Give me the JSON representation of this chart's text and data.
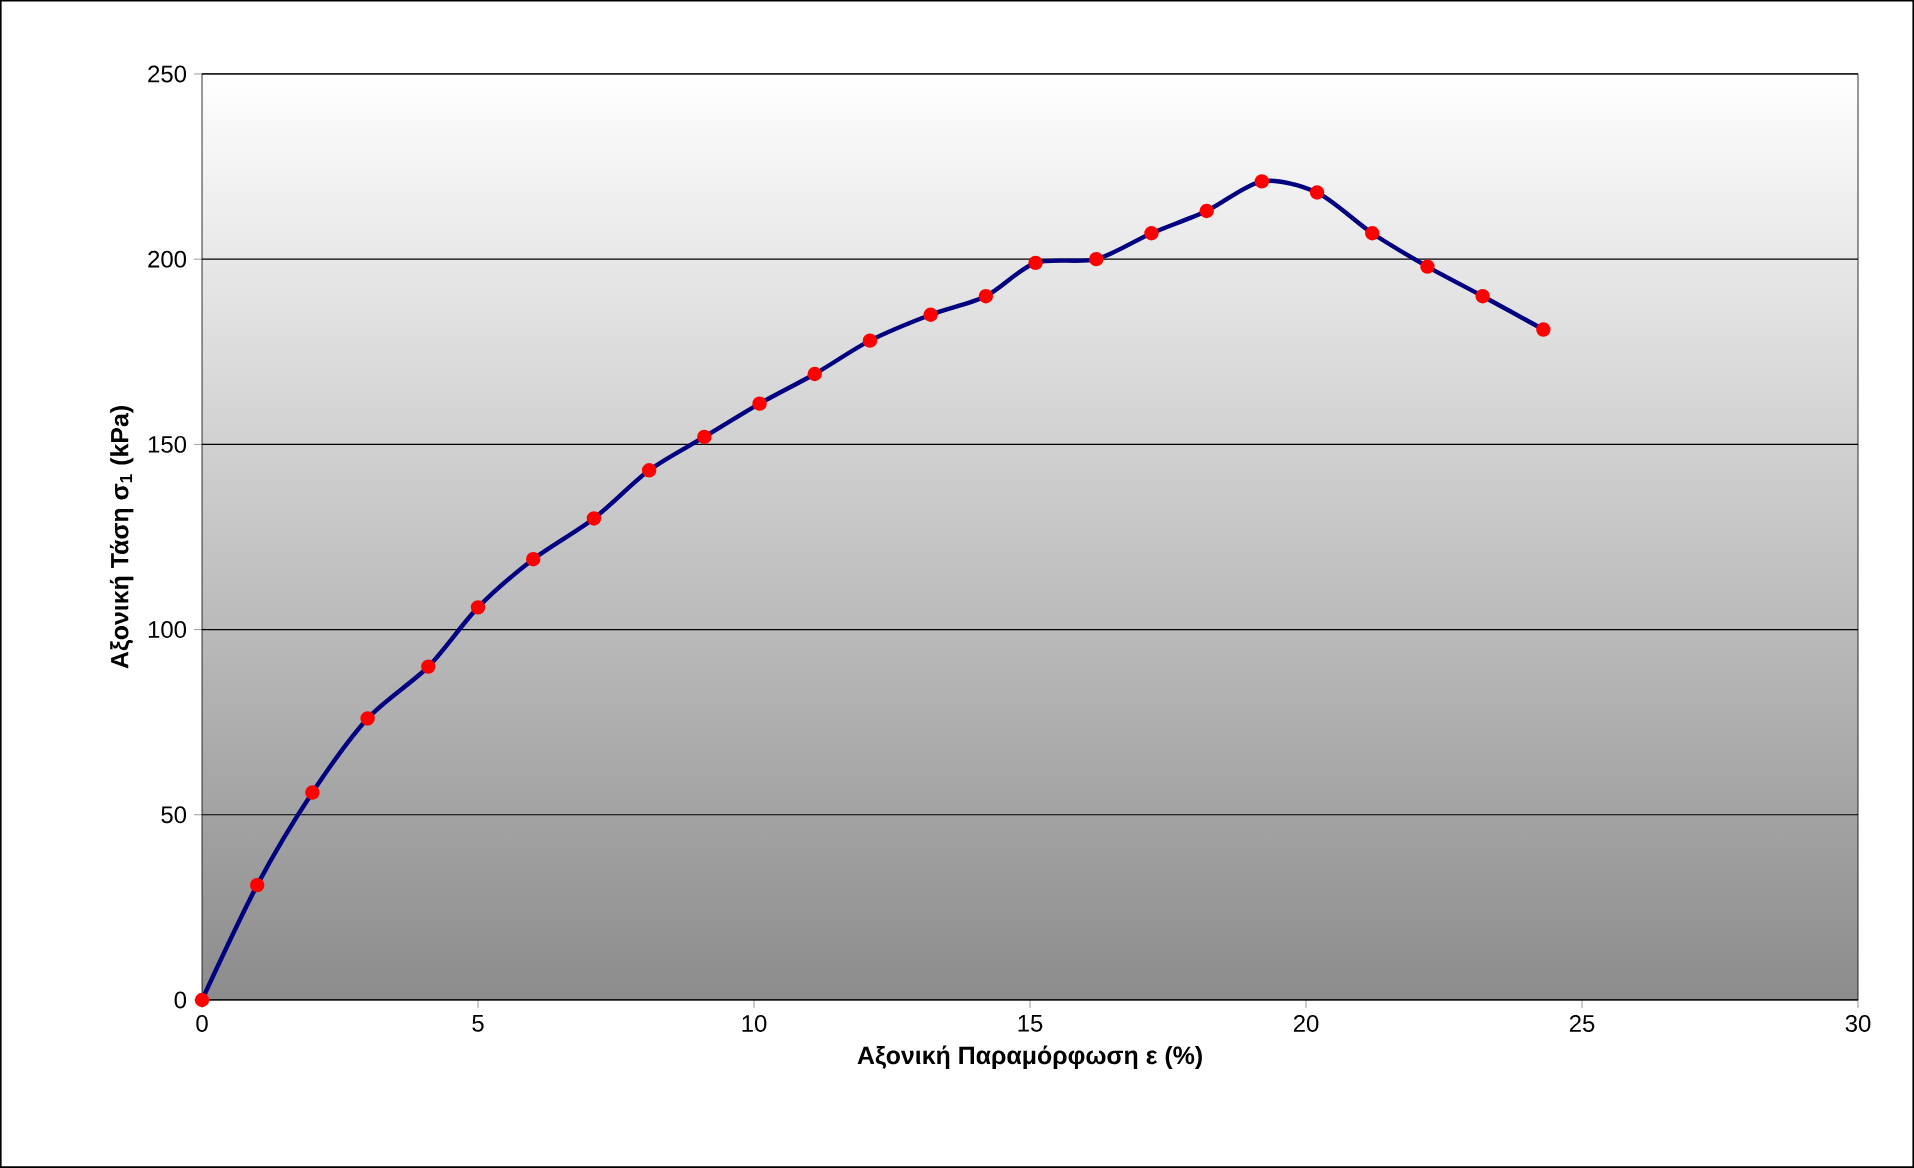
{
  "chart_data": {
    "type": "line",
    "xlabel": "Αξονική Παραμόρφωση ε (%)",
    "ylabel": "Αξονική Τάση σ$_{1}$ (kPa)",
    "xlim": [
      0,
      30
    ],
    "ylim": [
      0,
      250
    ],
    "xticks": [
      0,
      5,
      10,
      15,
      20,
      25,
      30
    ],
    "yticks": [
      0,
      50,
      100,
      150,
      200,
      250
    ],
    "grid": "y",
    "marker": "circle",
    "line_style": "solid",
    "series": [
      {
        "color": "#000080",
        "x": [
          0,
          1.0,
          2.0,
          3.0,
          4.1,
          5.0,
          6.0,
          7.1,
          8.1,
          9.1,
          10.1,
          11.1,
          12.1,
          13.2,
          14.2,
          15.1,
          16.2,
          17.2,
          18.2,
          19.2,
          20.2,
          21.2,
          22.2,
          23.2,
          24.3
        ],
        "values": [
          0,
          31,
          56,
          76,
          90,
          106,
          119,
          130,
          143,
          152,
          161,
          169,
          178,
          185,
          190,
          199,
          200,
          207,
          213,
          221,
          218,
          207,
          198,
          190,
          181
        ]
      }
    ]
  }
}
